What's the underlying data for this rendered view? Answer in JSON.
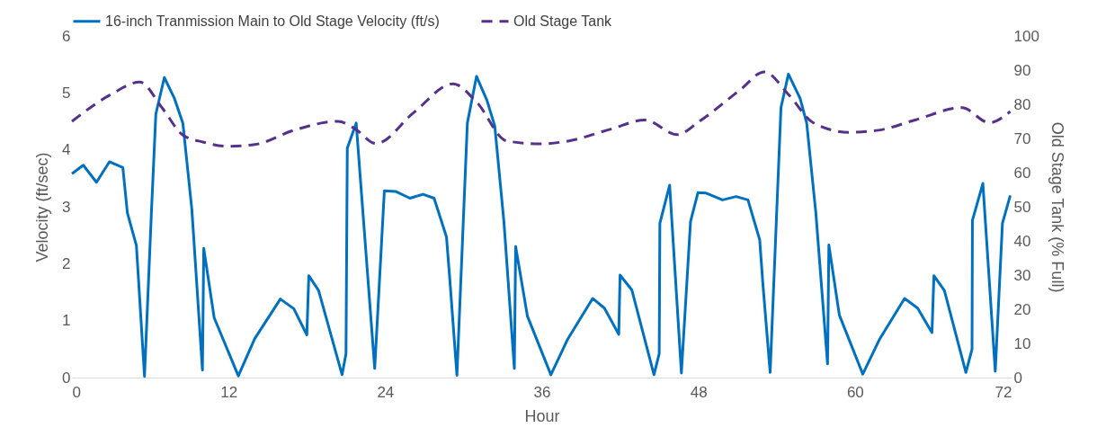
{
  "chart_data": {
    "type": "line",
    "xlabel": "Hour",
    "ylabel": "Velocity (ft/sec)",
    "y2label": "Old Stage Tank (% Full)",
    "xlim": [
      0,
      72
    ],
    "xticks": [
      0,
      12,
      24,
      36,
      48,
      60,
      72
    ],
    "ylim": [
      0,
      6
    ],
    "yticks": [
      0,
      1,
      2,
      3,
      4,
      5,
      6
    ],
    "y2lim": [
      0,
      100
    ],
    "y2ticks": [
      0,
      10,
      20,
      30,
      40,
      50,
      60,
      70,
      80,
      90,
      100
    ],
    "grid": false,
    "legend": "top",
    "marker": "none",
    "series": [
      {
        "name": "16-inch Tranmission Main to Old Stage Velocity (ft/s)",
        "color": "#0070c0",
        "line_style": "solid",
        "x": [
          0,
          0.87,
          1.88,
          2.87,
          3.9,
          4.25,
          4.94,
          5.56,
          6.09,
          6.43,
          7.08,
          7.86,
          8.5,
          9.19,
          10.0,
          10.1,
          10.9,
          12.75,
          14.0,
          15.97,
          17.0,
          18.0,
          18.15,
          18.9,
          20.7,
          21.0,
          21.1,
          21.78,
          23.2,
          23.94,
          24.8,
          25.9,
          26.9,
          27.75,
          28.7,
          28.95,
          29.5,
          30.3,
          31.0,
          31.8,
          32.4,
          33.1,
          33.9,
          34.0,
          34.9,
          36.7,
          38.0,
          39.9,
          40.8,
          41.9,
          42.0,
          42.9,
          44.6,
          45.0,
          45.05,
          45.8,
          46.7,
          47.4,
          47.97,
          48.6,
          49.85,
          50.9,
          51.8,
          52.7,
          52.95,
          53.5,
          54.33,
          54.9,
          55.8,
          56.3,
          57.0,
          57.9,
          58.0,
          58.8,
          60.6,
          61.9,
          63.8,
          64.8,
          65.9,
          66.05,
          66.85,
          68.5,
          68.97,
          69.0,
          69.8,
          70.75,
          71.3,
          71.9
        ],
        "values": [
          3.58,
          3.73,
          3.43,
          3.79,
          3.69,
          2.89,
          2.32,
          0.02,
          2.9,
          4.63,
          5.27,
          4.9,
          4.47,
          2.95,
          0.13,
          2.27,
          1.05,
          0.03,
          0.68,
          1.38,
          1.21,
          0.75,
          1.79,
          1.53,
          0.05,
          0.42,
          4.03,
          4.47,
          0.16,
          3.28,
          3.27,
          3.15,
          3.22,
          3.15,
          2.47,
          1.74,
          0.04,
          4.47,
          5.29,
          4.87,
          4.42,
          2.74,
          0.16,
          2.3,
          1.08,
          0.05,
          0.68,
          1.39,
          1.22,
          0.76,
          1.8,
          1.54,
          0.05,
          0.42,
          2.71,
          3.38,
          0.08,
          2.74,
          3.25,
          3.24,
          3.12,
          3.18,
          3.12,
          2.42,
          1.63,
          0.09,
          4.74,
          5.33,
          4.9,
          4.47,
          2.9,
          0.24,
          2.33,
          1.1,
          0.06,
          0.68,
          1.39,
          1.22,
          0.79,
          1.79,
          1.53,
          0.09,
          0.5,
          2.76,
          3.41,
          0.11,
          2.71,
          3.2
        ]
      },
      {
        "name": "Old Stage Tank",
        "color": "#55308d",
        "line_style": "dashed",
        "axis": "y2",
        "x": [
          0,
          3.0,
          5.2,
          6.9,
          8.5,
          10.1,
          11.9,
          14.0,
          17.0,
          20.4,
          21.7,
          23.3,
          26.2,
          29.2,
          31.0,
          33.3,
          35.8,
          38.1,
          41.35,
          43.9,
          46.4,
          48.0,
          51.2,
          53.05,
          54.9,
          56.8,
          59.5,
          61.8,
          64.6,
          68.2,
          70.3,
          71.9
        ],
        "values": [
          75,
          82.9,
          86.5,
          79,
          71,
          68.9,
          67.7,
          68.2,
          72.4,
          75,
          72.8,
          68.5,
          77.6,
          86,
          80.7,
          69.3,
          68.4,
          69.3,
          72.8,
          75.4,
          71.1,
          74.8,
          84.2,
          89.5,
          82.9,
          74.6,
          71.8,
          72.4,
          75.4,
          79,
          74.6,
          77.9
        ]
      }
    ]
  }
}
